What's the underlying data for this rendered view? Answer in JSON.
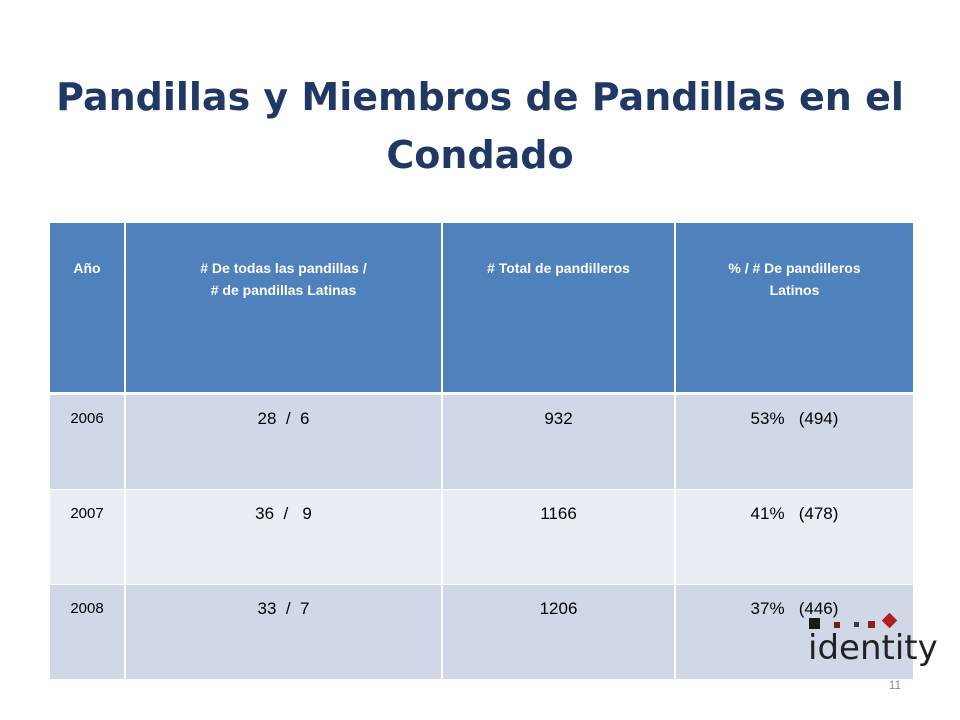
{
  "slide": {
    "title": "Pandillas y Miembros de Pandillas en el Condado",
    "page_number": "11"
  },
  "table": {
    "headers": [
      {
        "line1": "Año",
        "line2": ""
      },
      {
        "line1": "# De  todas  las pandillas  /",
        "line2": "# de pandillas  Latinas"
      },
      {
        "line1": "# Total  de pandilleros",
        "line2": ""
      },
      {
        "line1": "% / # De pandilleros",
        "line2": "Latinos"
      }
    ],
    "rows": [
      {
        "year": "2006",
        "gangs": "28  /  6",
        "total": "932",
        "latino": "53%   (494)"
      },
      {
        "year": "2007",
        "gangs": "36  /   9",
        "total": "1166",
        "latino": "41%   (478)"
      },
      {
        "year": "2008",
        "gangs": "33  /  7",
        "total": "1206",
        "latino": "37%   (446)"
      }
    ]
  },
  "logo": {
    "text": "identity",
    "colors": {
      "dark": "#1a1a1a",
      "accent": "#b01e1e"
    }
  },
  "colors": {
    "title": "#1f3864",
    "header_bg": "#4f81bd",
    "row_odd": "#d0d8e8",
    "row_even": "#e9edf4"
  }
}
